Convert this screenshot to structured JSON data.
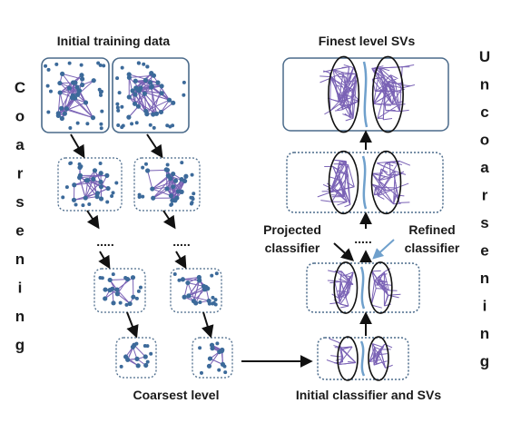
{
  "labels": {
    "initial_training_data": "Initial training data",
    "finest_level_svs": "Finest level SVs",
    "coarsest_level": "Coarsest level",
    "initial_classifier_and_svs": "Initial classifier and SVs",
    "projected_line1": "Projected",
    "projected_line2": "classifier",
    "refined_line1": "Refined",
    "refined_line2": "classifier",
    "dots": "....."
  },
  "side_text": {
    "coarsening": [
      "C",
      "o",
      "a",
      "r",
      "s",
      "e",
      "n",
      "i",
      "n",
      "g"
    ],
    "uncoarsening": [
      "U",
      "n",
      "c",
      "o",
      "a",
      "r",
      "s",
      "e",
      "n",
      "i",
      "n",
      "g"
    ]
  },
  "colors": {
    "graph_edge": "#7a62b5",
    "graph_node": "#3c6a9a",
    "panel_border": "#4a6a8a",
    "boundary_line": "#6fa0cc",
    "arrow": "#111111"
  }
}
